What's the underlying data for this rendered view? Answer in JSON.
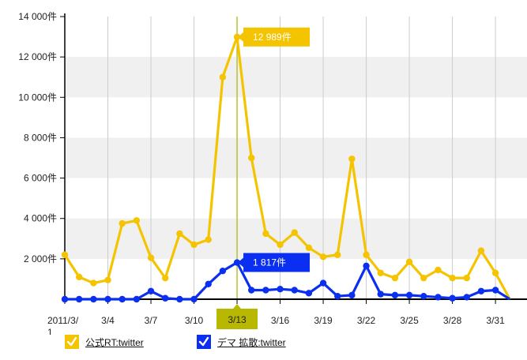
{
  "chart_data": {
    "type": "line",
    "x_tick_labels": [
      "2011/3/\n1",
      "3/4",
      "3/7",
      "3/10",
      "3/13",
      "3/16",
      "3/19",
      "3/22",
      "3/25",
      "3/28",
      "3/31"
    ],
    "y_tick_labels": [
      "2 000件",
      "4 000件",
      "6 000件",
      "8 000件",
      "10 000件",
      "12 000件",
      "14 000件"
    ],
    "ylim": [
      0,
      14000
    ],
    "grid": true,
    "legend_placement": "bottom-left",
    "highlighted_date": "3/13",
    "series": [
      {
        "name": "公式RT:twitter",
        "color": "#f5c400",
        "values": [
          2200,
          1100,
          800,
          950,
          3750,
          3900,
          2050,
          1050,
          3250,
          2700,
          2950,
          11000,
          12989,
          7000,
          3250,
          2700,
          3300,
          2550,
          2100,
          2200,
          6950,
          2200,
          1300,
          1050,
          1850,
          1050,
          1450,
          1050,
          1050,
          2400,
          1300,
          0
        ]
      },
      {
        "name": "デマ 拡散:twitter",
        "color": "#0b2ff0",
        "values": [
          0,
          0,
          0,
          0,
          0,
          0,
          400,
          50,
          0,
          0,
          750,
          1400,
          1817,
          450,
          450,
          500,
          450,
          300,
          800,
          150,
          200,
          1650,
          250,
          200,
          200,
          150,
          100,
          50,
          100,
          400,
          450,
          0
        ]
      }
    ],
    "callouts": [
      {
        "series": 0,
        "index": 12,
        "text": "12 989件",
        "color": "#f5c400"
      },
      {
        "series": 1,
        "index": 12,
        "text": "1 817件",
        "color": "#0b2ff0"
      }
    ]
  },
  "legend": [
    {
      "label": "公式RT:twitter",
      "color": "#f5c400",
      "icon": "check-icon"
    },
    {
      "label": "デマ 拡散:twitter",
      "color": "#0b2ff0",
      "icon": "check-icon"
    }
  ],
  "colors": {
    "band": "#f0f0f0",
    "gridline": "#cccccc",
    "axis": "#000000",
    "highlight_line": "#a8b400",
    "highlight_box": "#b8b800"
  }
}
